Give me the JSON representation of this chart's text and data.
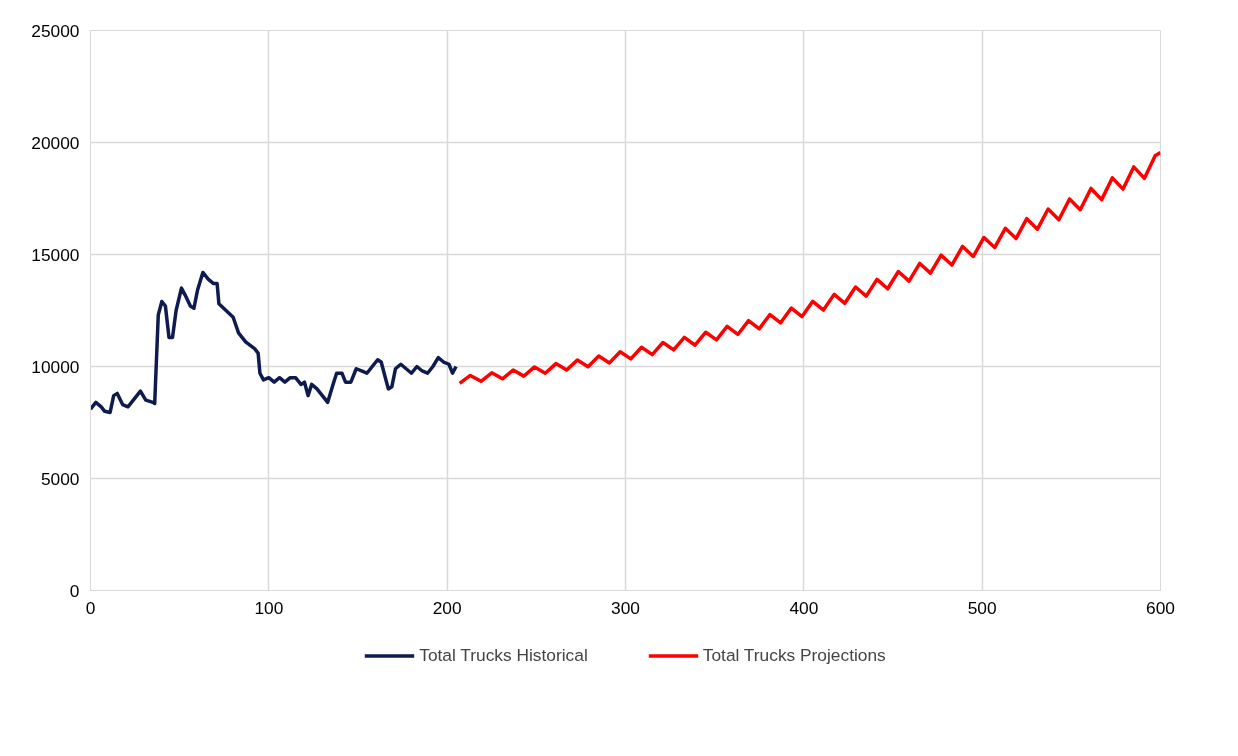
{
  "chart_data": {
    "type": "line",
    "xlim": [
      0,
      600
    ],
    "ylim": [
      0,
      25000
    ],
    "xticks": [
      0,
      100,
      200,
      300,
      400,
      500,
      600
    ],
    "yticks": [
      0,
      5000,
      10000,
      15000,
      20000,
      25000
    ],
    "grid": true,
    "legend": "bottom",
    "line_style": "solid",
    "series": [
      {
        "name": "Total Trucks Historical",
        "color": "#0d1b4f",
        "x": [
          0,
          3,
          6,
          8,
          11,
          13,
          15,
          18,
          21,
          24,
          28,
          31,
          35,
          36,
          38,
          40,
          42,
          44,
          46,
          48,
          51,
          53,
          56,
          58,
          60,
          63,
          66,
          69,
          71,
          72,
          76,
          80,
          83,
          87,
          92,
          94,
          95,
          97,
          100,
          103,
          106,
          109,
          112,
          115,
          118,
          120,
          122,
          124,
          127,
          130,
          133,
          136,
          138,
          141,
          143,
          146,
          149,
          152,
          155,
          158,
          161,
          163,
          165,
          167,
          169,
          171,
          174,
          177,
          180,
          183,
          186,
          189,
          192,
          195,
          198,
          201,
          203,
          205
        ],
        "values": [
          8100,
          8400,
          8200,
          8000,
          7950,
          8700,
          8800,
          8300,
          8200,
          8500,
          8900,
          8500,
          8400,
          8350,
          12300,
          12900,
          12700,
          11300,
          11300,
          12500,
          13500,
          13200,
          12700,
          12600,
          13400,
          14200,
          13900,
          13700,
          13700,
          12800,
          12500,
          12200,
          11500,
          11100,
          10800,
          10600,
          9700,
          9400,
          9500,
          9300,
          9500,
          9300,
          9500,
          9500,
          9200,
          9300,
          8700,
          9200,
          9000,
          8700,
          8400,
          9200,
          9700,
          9700,
          9300,
          9300,
          9900,
          9800,
          9700,
          10000,
          10300,
          10200,
          9600,
          9000,
          9100,
          9900,
          10100,
          9900,
          9700,
          10000,
          9800,
          9700,
          10000,
          10400,
          10200,
          10100,
          9700,
          10000
        ]
      },
      {
        "name": "Total Trucks Projections",
        "color": "#ff0000",
        "x": [
          207,
          213,
          219,
          225,
          231,
          237,
          243,
          249,
          255,
          261,
          267,
          273,
          279,
          285,
          291,
          297,
          303,
          309,
          315,
          321,
          327,
          333,
          339,
          345,
          351,
          357,
          363,
          369,
          375,
          381,
          387,
          393,
          399,
          405,
          411,
          417,
          423,
          429,
          435,
          441,
          447,
          453,
          459,
          465,
          471,
          477,
          483,
          489,
          495,
          501,
          507,
          513,
          519,
          525,
          531,
          537,
          543,
          549,
          555,
          561,
          567,
          573,
          579,
          585,
          591,
          597,
          600
        ],
        "values": [
          9250,
          9600,
          9340,
          9720,
          9450,
          9840,
          9570,
          9980,
          9700,
          10130,
          9840,
          10290,
          9990,
          10470,
          10160,
          10660,
          10340,
          10860,
          10530,
          11070,
          10740,
          11300,
          10950,
          11530,
          11190,
          11790,
          11430,
          12050,
          11680,
          12320,
          11950,
          12610,
          12230,
          12910,
          12520,
          13220,
          12820,
          13550,
          13140,
          13890,
          13470,
          14240,
          13810,
          14600,
          14170,
          14970,
          14530,
          15360,
          14910,
          15760,
          15310,
          16170,
          15710,
          16600,
          16130,
          17030,
          16550,
          17480,
          17000,
          17950,
          17450,
          18420,
          17920,
          18910,
          18400,
          19410,
          19550
        ]
      }
    ]
  }
}
